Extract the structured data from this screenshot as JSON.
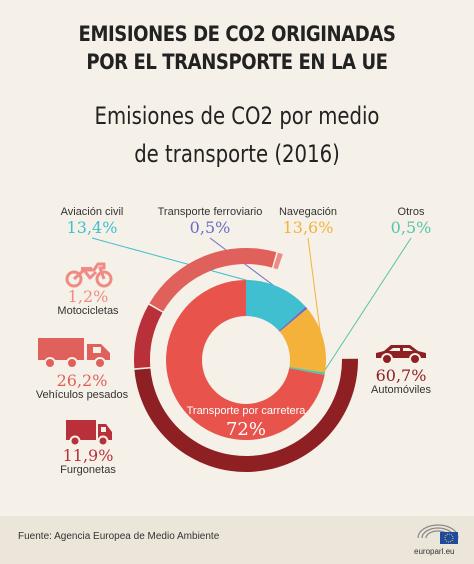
{
  "header": {
    "title_line1": "EMISIONES DE CO2 ORIGINADAS",
    "title_line2": "POR EL TRANSPORTE EN LA UE"
  },
  "chart_data": {
    "type": "pie",
    "title_line1": "Emisiones de CO2 por medio",
    "title_line2": "de transporte (2016)",
    "slices": [
      {
        "label": "Aviación civil",
        "pct_text": "13,4%",
        "value": 13.4,
        "color": "#3fbfd0"
      },
      {
        "label": "Transporte ferroviario",
        "pct_text": "0,5%",
        "value": 0.5,
        "color": "#6a6fc4"
      },
      {
        "label": "Navegación",
        "pct_text": "13,6%",
        "value": 13.6,
        "color": "#f4b23a"
      },
      {
        "label": "Otros",
        "pct_text": "0,5%",
        "value": 0.5,
        "color": "#57c4a9"
      },
      {
        "label": "Transporte por carretera",
        "pct_text": "72%",
        "value": 72,
        "color": "#e8534c"
      }
    ],
    "road_breakdown": [
      {
        "label": "Automóviles",
        "pct_text": "60,7%",
        "value": 60.7,
        "color": "#8e1f22",
        "icon": "car-icon"
      },
      {
        "label": "Furgonetas",
        "pct_text": "11,9%",
        "value": 11.9,
        "color": "#b9303a",
        "icon": "van-icon"
      },
      {
        "label": "Vehículos pesados",
        "pct_text": "26,2%",
        "value": 26.2,
        "color": "#e0615c",
        "icon": "truck-icon"
      },
      {
        "label": "Motocicletas",
        "pct_text": "1,2%",
        "value": 1.2,
        "color": "#f08a84",
        "icon": "motorcycle-icon"
      }
    ]
  },
  "footer": {
    "source": "Fuente: Agencia Europea de Medio Ambiente",
    "brand": "europarl.eu"
  }
}
